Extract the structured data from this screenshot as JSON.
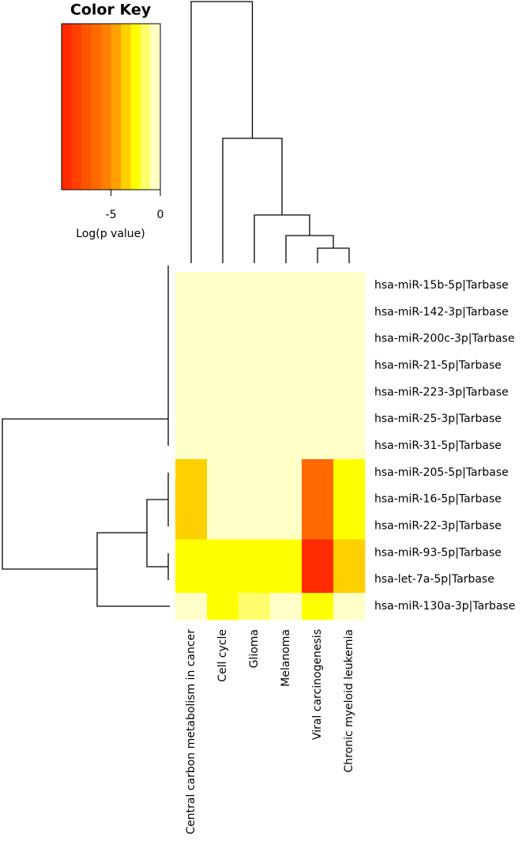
{
  "chart_data": {
    "type": "heatmap",
    "rows": [
      "hsa-miR-15b-5p|Tarbase",
      "hsa-miR-142-3p|Tarbase",
      "hsa-miR-200c-3p|Tarbase",
      "hsa-miR-21-5p|Tarbase",
      "hsa-miR-223-3p|Tarbase",
      "hsa-miR-25-3p|Tarbase",
      "hsa-miR-31-5p|Tarbase",
      "hsa-miR-205-5p|Tarbase",
      "hsa-miR-16-5p|Tarbase",
      "hsa-miR-22-3p|Tarbase",
      "hsa-miR-93-5p|Tarbase",
      "hsa-let-7a-5p|Tarbase",
      "hsa-miR-130a-3p|Tarbase"
    ],
    "columns": [
      "Central carbon metabolism in cancer",
      "Cell cycle",
      "Glioma",
      "Melanoma",
      "Viral carcinogenesis",
      "Chronic myeloid leukemia"
    ],
    "values": [
      [
        -0.5,
        -0.5,
        -0.5,
        -0.5,
        -0.5,
        -0.5
      ],
      [
        -0.5,
        -0.5,
        -0.5,
        -0.5,
        -0.5,
        -0.5
      ],
      [
        -0.5,
        -0.5,
        -0.5,
        -0.5,
        -0.5,
        -0.5
      ],
      [
        -0.5,
        -0.5,
        -0.5,
        -0.5,
        -0.5,
        -0.5
      ],
      [
        -0.5,
        -0.5,
        -0.5,
        -0.5,
        -0.5,
        -0.5
      ],
      [
        -0.5,
        -0.5,
        -0.5,
        -0.5,
        -0.5,
        -0.5
      ],
      [
        -0.5,
        -0.5,
        -0.5,
        -0.5,
        -0.5,
        -0.5
      ],
      [
        -3.5,
        -0.5,
        -0.5,
        -0.5,
        -6.5,
        -2.5
      ],
      [
        -3.5,
        -0.5,
        -0.5,
        -0.5,
        -6.5,
        -2.5
      ],
      [
        -3.5,
        -0.5,
        -0.5,
        -0.5,
        -6.5,
        -2.5
      ],
      [
        -2.5,
        -2.5,
        -2.5,
        -2.5,
        -9.5,
        -3.5
      ],
      [
        -2.5,
        -2.5,
        -2.5,
        -2.5,
        -9.5,
        -3.5
      ],
      [
        -0.5,
        -2.5,
        -1.5,
        -0.5,
        -2.5,
        -0.5
      ]
    ],
    "color_key": {
      "title": "Color Key",
      "xlabel": "Log(p value)",
      "xlim": [
        -10,
        0
      ],
      "xticks": [
        -5,
        0
      ],
      "colors": [
        "#FF2A00",
        "#FF4000",
        "#FF5500",
        "#FF6A00",
        "#FF8000",
        "#FF9F00",
        "#FFD000",
        "#FFFF00",
        "#FFFF6E",
        "#FFFFC8"
      ]
    }
  }
}
